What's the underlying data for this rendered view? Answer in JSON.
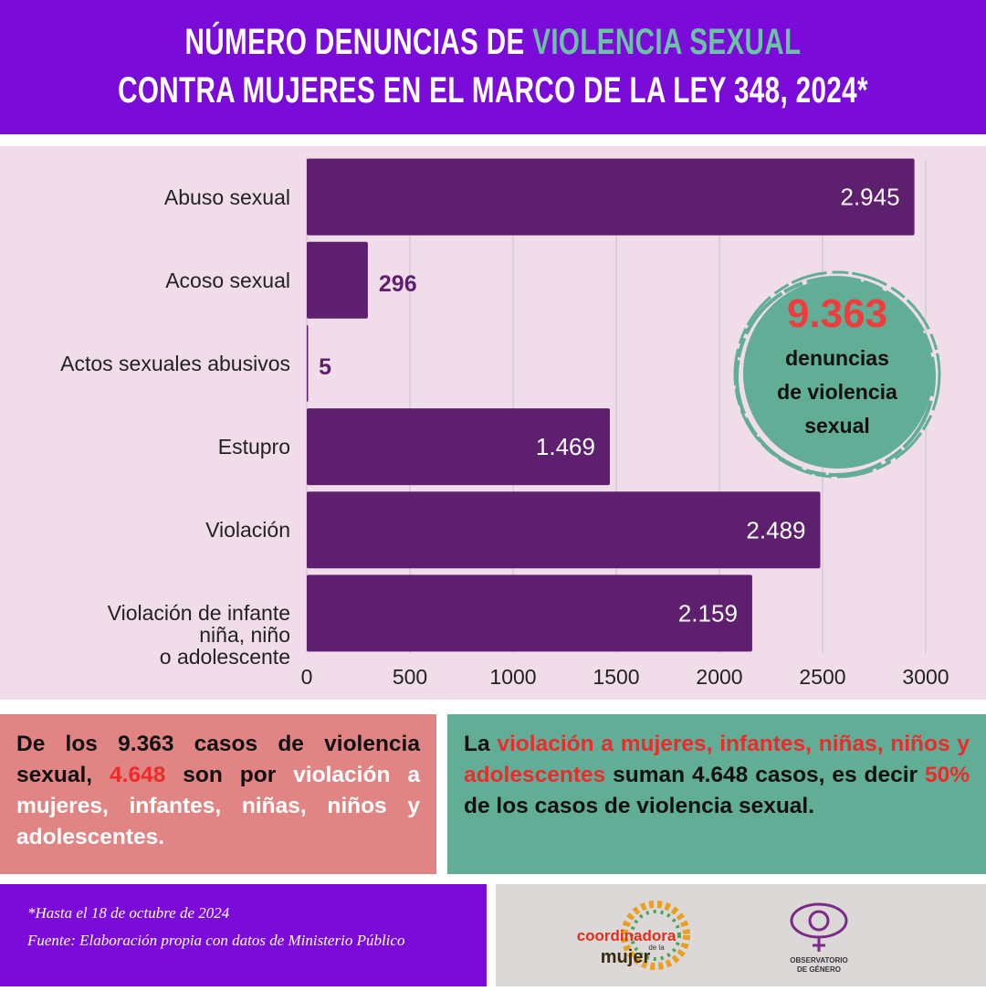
{
  "header": {
    "line1": [
      {
        "text": "NÚMERO DENUNCIAS DE ",
        "color": "#ffffff"
      },
      {
        "text": "VIOLENCIA SEXUAL",
        "color": "#6cc3a3"
      }
    ],
    "line2": [
      {
        "text": "CONTRA MUJERES EN EL MARCO DE LA LEY 348, 2024*",
        "color": "#ffffff"
      }
    ]
  },
  "chart_data": {
    "type": "bar",
    "orientation": "horizontal",
    "categories": [
      "Abuso sexual",
      "Acoso sexual",
      "Actos sexuales abusivos",
      "Estupro",
      "Violación",
      "Violación de infante\nniña, niño\no adolescente"
    ],
    "values": [
      2945,
      296,
      5,
      1469,
      2489,
      2159
    ],
    "value_labels": [
      "2.945",
      "296",
      "5",
      "1.469",
      "2.489",
      "2.159"
    ],
    "color": "#5e1f6e",
    "xlim": [
      0,
      3000
    ],
    "xticks": [
      0,
      500,
      1000,
      1500,
      2000,
      2500,
      3000
    ],
    "grid": true
  },
  "badge": {
    "value": "9.363",
    "lines": [
      "denuncias",
      "de violencia",
      "sexual"
    ]
  },
  "left_box": {
    "segments": [
      {
        "text": "De los 9.363 casos de violencia sexual, ",
        "color": "#111111"
      },
      {
        "text": "4.648",
        "color": "#ee2a2a"
      },
      {
        "text": " son por ",
        "color": "#111111"
      },
      {
        "text": "violación a mujeres, infantes, niñas, niños y adolescentes.",
        "color": "#ffffff"
      }
    ]
  },
  "right_box": {
    "segments": [
      {
        "text": "La ",
        "color": "#111111"
      },
      {
        "text": "violación a mujeres, infantes, niñas, niños y adolescentes",
        "color": "#ee2a2a"
      },
      {
        "text": " suman 4.648 casos, es decir ",
        "color": "#111111"
      },
      {
        "text": "50%",
        "color": "#ee2a2a"
      },
      {
        "text": " de los casos de violencia sexual.",
        "color": "#111111"
      }
    ]
  },
  "footer": {
    "notes": [
      "*Hasta el 18 de octubre de 2024",
      "Fuente: Elaboración propia con datos de Ministerio Público"
    ],
    "logo1": [
      "coordinadora",
      "de la",
      "mujer"
    ],
    "logo2": [
      "OBSERVATORIO",
      "DE GÉNERO"
    ]
  }
}
